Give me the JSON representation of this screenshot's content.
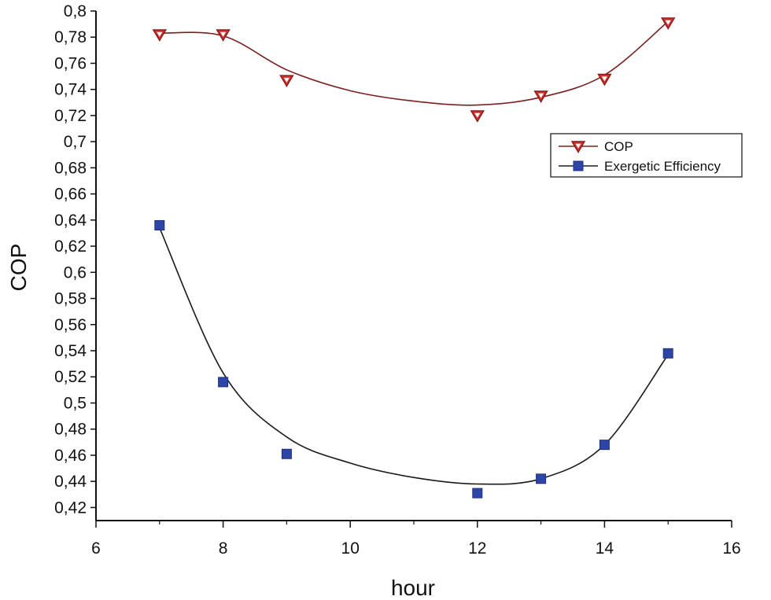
{
  "chart_data": {
    "type": "line",
    "title": "",
    "xlabel": "hour",
    "ylabel": "COP",
    "xlim": [
      6,
      16
    ],
    "ylim": [
      0.41,
      0.8
    ],
    "xticks": [
      6,
      8,
      10,
      12,
      14,
      16
    ],
    "xtick_labels": [
      "6",
      "8",
      "10",
      "12",
      "14",
      "16"
    ],
    "yticks": [
      0.42,
      0.44,
      0.46,
      0.48,
      0.5,
      0.52,
      0.54,
      0.56,
      0.58,
      0.6,
      0.62,
      0.64,
      0.66,
      0.68,
      0.7,
      0.72,
      0.74,
      0.76,
      0.78,
      0.8
    ],
    "ytick_labels": [
      "0,42",
      "0,44",
      "0,46",
      "0,48",
      "0,5",
      "0,52",
      "0,54",
      "0,56",
      "0,58",
      "0,6",
      "0,62",
      "0,64",
      "0,66",
      "0,68",
      "0,7",
      "0,72",
      "0,74",
      "0,76",
      "0,78",
      "0,8"
    ],
    "grid": false,
    "legend_position": "right",
    "series": [
      {
        "name": "COP",
        "marker": "triangle-down",
        "color": "#d0312d",
        "line_color": "#7a1f1f",
        "x": [
          7,
          8,
          9,
          12,
          13,
          14,
          15
        ],
        "values": [
          0.782,
          0.782,
          0.747,
          0.72,
          0.735,
          0.748,
          0.791
        ],
        "fit_curve": [
          [
            7,
            0.783
          ],
          [
            8,
            0.781
          ],
          [
            9,
            0.755
          ],
          [
            10,
            0.739
          ],
          [
            11,
            0.731
          ],
          [
            12,
            0.728
          ],
          [
            13,
            0.734
          ],
          [
            14,
            0.751
          ],
          [
            15,
            0.792
          ]
        ]
      },
      {
        "name": "Exergetic Efficiency",
        "marker": "square",
        "color": "#2e45a8",
        "line_color": "#1a1a1a",
        "x": [
          7,
          8,
          9,
          12,
          13,
          14,
          15
        ],
        "values": [
          0.636,
          0.516,
          0.461,
          0.431,
          0.442,
          0.468,
          0.538
        ],
        "fit_curve": [
          [
            7,
            0.634
          ],
          [
            8,
            0.523
          ],
          [
            9,
            0.474
          ],
          [
            10,
            0.454
          ],
          [
            11,
            0.443
          ],
          [
            12,
            0.438
          ],
          [
            13,
            0.442
          ],
          [
            14,
            0.468
          ],
          [
            15,
            0.537
          ]
        ]
      }
    ]
  }
}
